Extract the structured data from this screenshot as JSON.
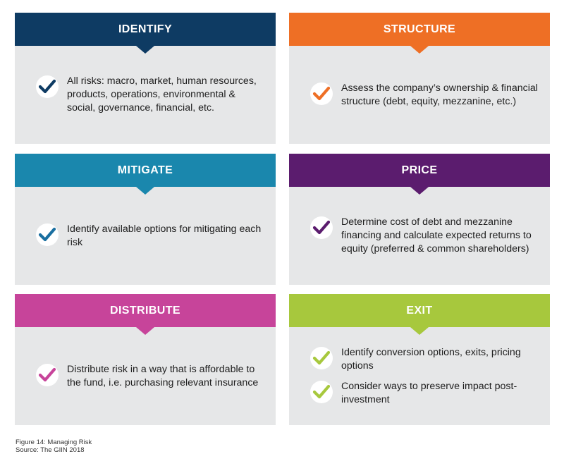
{
  "cards": {
    "identify": {
      "title": "IDENTIFY",
      "color": "#0e3b63",
      "items": [
        "All risks: macro, market, human resources, products, operations, environmental & social, governance, financial, etc."
      ]
    },
    "structure": {
      "title": "STRUCTURE",
      "color": "#ee6f25",
      "items": [
        "Assess the company’s ownership & financial structure (debt, equity, mezzanine, etc.)"
      ]
    },
    "mitigate": {
      "title": "MITIGATE",
      "color": "#1a87ad",
      "items": [
        "Identify available options for mitigating each risk"
      ]
    },
    "price": {
      "title": "PRICE",
      "color": "#5b1c6e",
      "items": [
        "Determine cost of debt and mezzanine financing and calculate expected returns to equity (preferred & common shareholders)"
      ]
    },
    "distribute": {
      "title": "DISTRIBUTE",
      "color": "#c7449a",
      "items": [
        "Distribute risk in a way that is affordable to the fund, i.e. purchasing relevant insurance"
      ]
    },
    "exit": {
      "title": "EXIT",
      "color": "#a7c83d",
      "items": [
        "Identify conversion options, exits, pricing options",
        "Consider ways to preserve impact post-investment"
      ]
    }
  },
  "icons": {
    "check": "checkmark-icon"
  },
  "caption": {
    "figure": "Figure 14: Managing Risk",
    "source": "Source: The GIIN 2018"
  }
}
